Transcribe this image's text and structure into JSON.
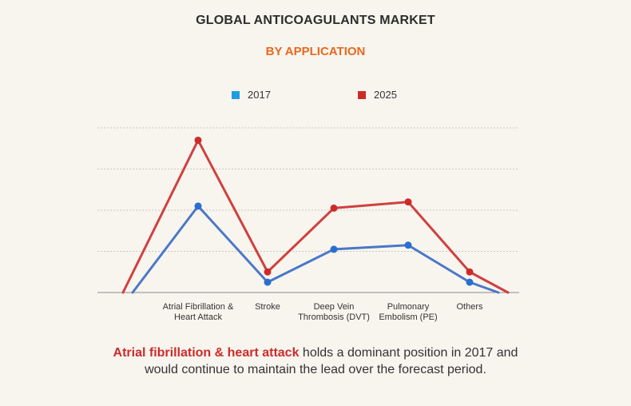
{
  "title": "GLOBAL ANTICOAGULANTS MARKET",
  "subtitle": "BY APPLICATION",
  "caption": {
    "highlight": "Atrial fibrillation & heart attack",
    "line1_rest": " holds a dominant position in 2017 and",
    "line2": "would continue to maintain the lead over the forecast period."
  },
  "chart_data": {
    "type": "line",
    "categories": [
      [
        "Atrial Fibrillation &",
        "Heart Attack"
      ],
      [
        "Stroke"
      ],
      [
        "Deep Vein",
        "Thrombosis (DVT)"
      ],
      [
        "Pulmonary",
        "Embolism (PE)"
      ],
      [
        "Others"
      ]
    ],
    "ylim": [
      0,
      4
    ],
    "grid": true,
    "legend_position": "top-center",
    "series": [
      {
        "name": "2017",
        "color": "#1e9ee0",
        "line_color": "#4a78c8",
        "values": [
          2.1,
          0.25,
          1.05,
          1.15,
          0.25
        ]
      },
      {
        "name": "2025",
        "color": "#cc2b2b",
        "line_color": "#d04040",
        "values": [
          3.7,
          0.5,
          2.05,
          2.2,
          0.5
        ]
      }
    ]
  }
}
